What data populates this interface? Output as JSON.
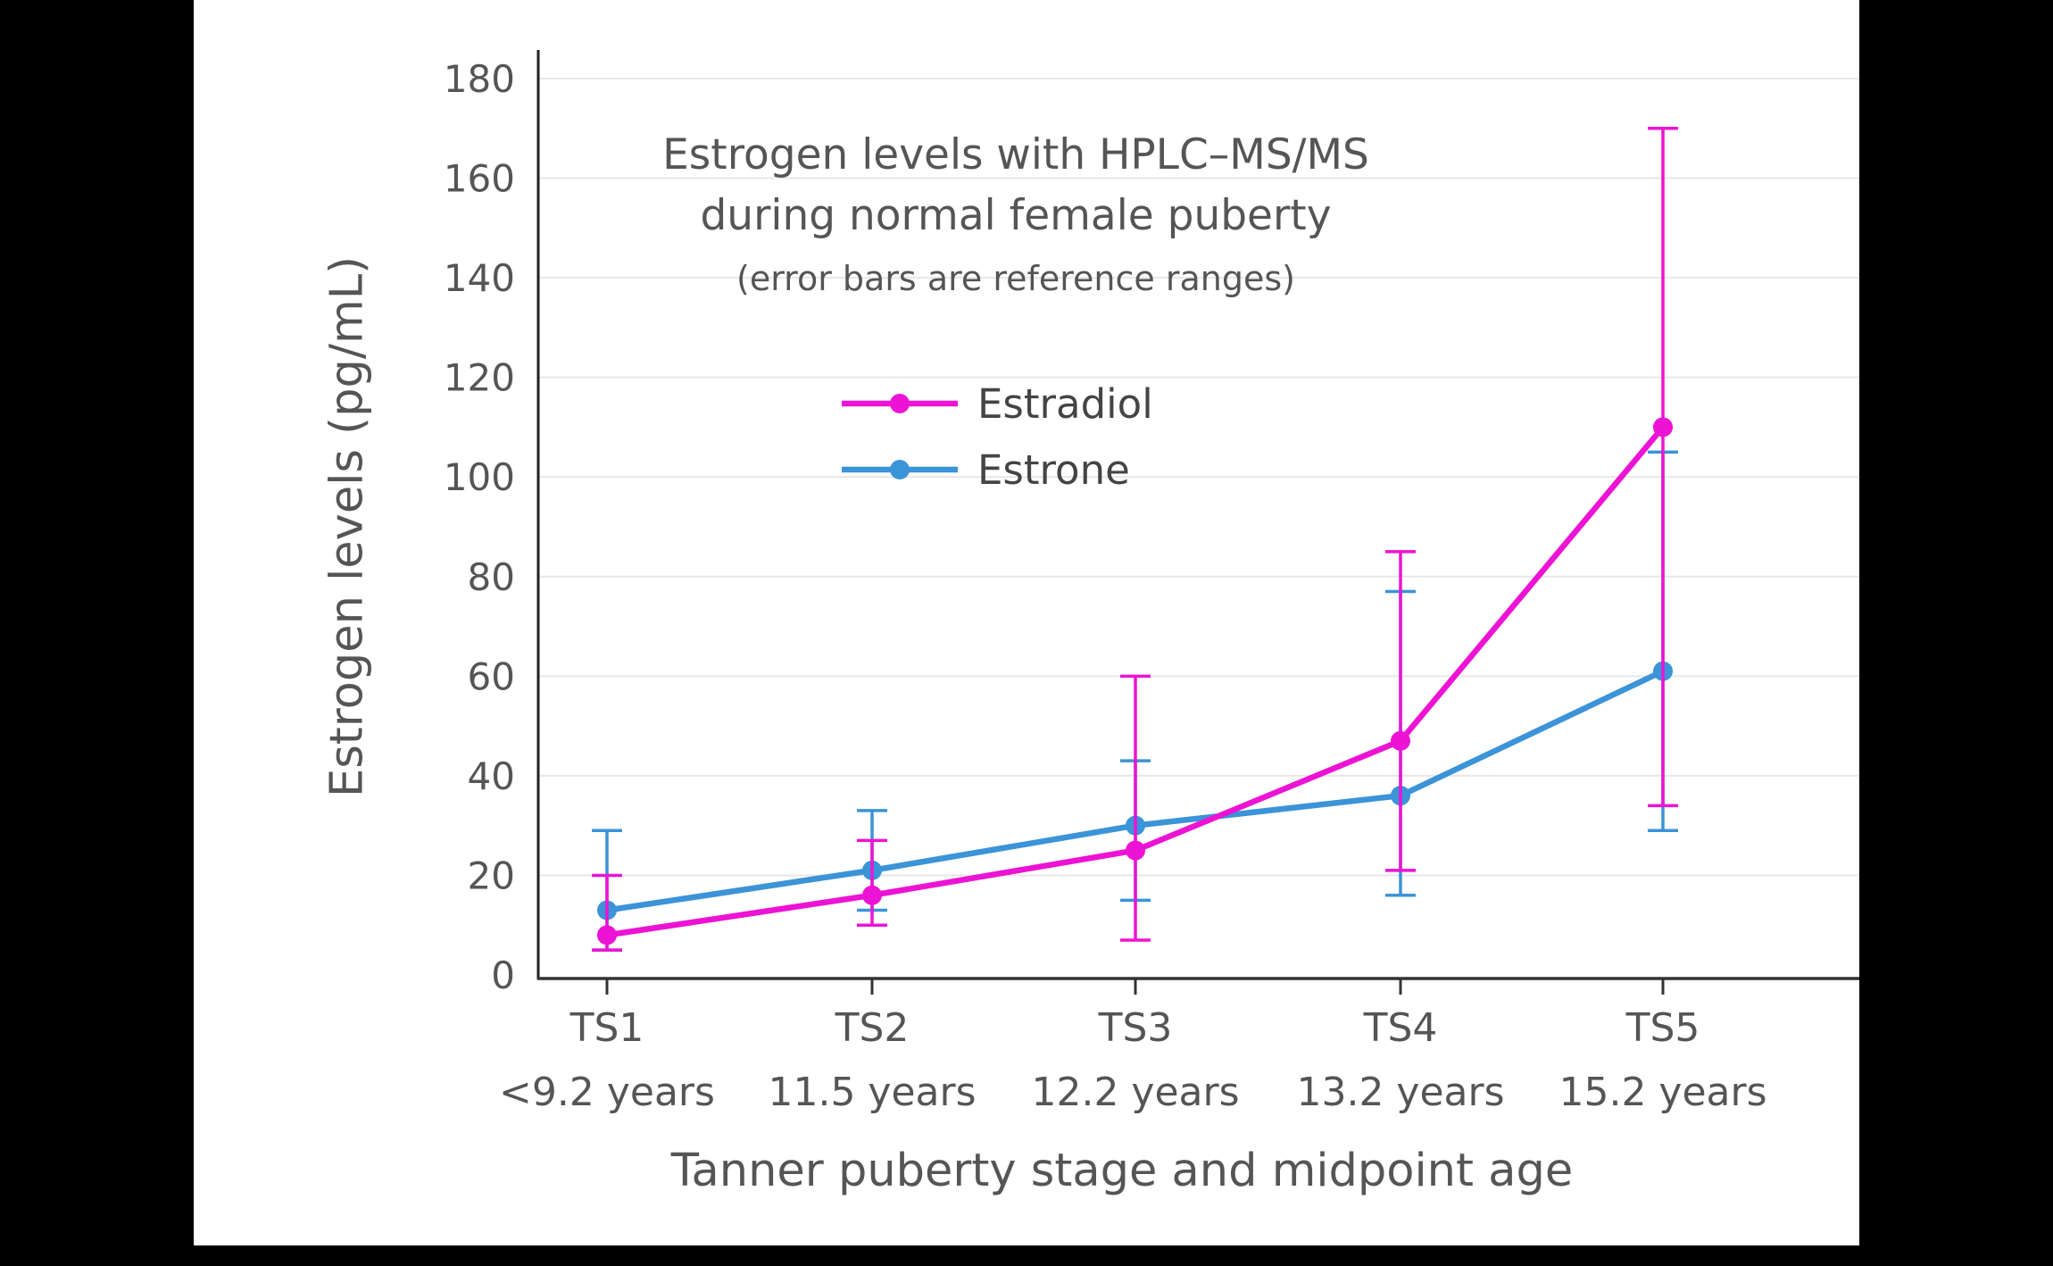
{
  "chart_data": {
    "type": "line",
    "title_line1": "Estrogen levels with HPLC–MS/MS",
    "title_line2": "during normal female puberty",
    "subtitle": "(error bars are reference ranges)",
    "xlabel": "Tanner puberty stage and midpoint age",
    "ylabel": "Estrogen levels (pg/mL)",
    "ylim": [
      0,
      180
    ],
    "ytick_step": 20,
    "grid": true,
    "legend_position": "inside-upper-left",
    "categories": [
      "TS1",
      "TS2",
      "TS3",
      "TS4",
      "TS5"
    ],
    "category_sublabels": [
      "<9.2 years",
      "11.5 years",
      "12.2 years",
      "13.2 years",
      "15.2 years"
    ],
    "series": [
      {
        "name": "Estradiol",
        "color": "#ec13d4",
        "values": [
          8,
          16,
          25,
          47,
          110
        ],
        "error_low": [
          5,
          10,
          7,
          21,
          34
        ],
        "error_high": [
          20,
          27,
          60,
          85,
          170
        ]
      },
      {
        "name": "Estrone",
        "color": "#3b93d8",
        "values": [
          13,
          21,
          30,
          36,
          61
        ],
        "error_low": [
          5,
          13,
          15,
          16,
          29
        ],
        "error_high": [
          29,
          33,
          43,
          77,
          105
        ]
      }
    ]
  }
}
